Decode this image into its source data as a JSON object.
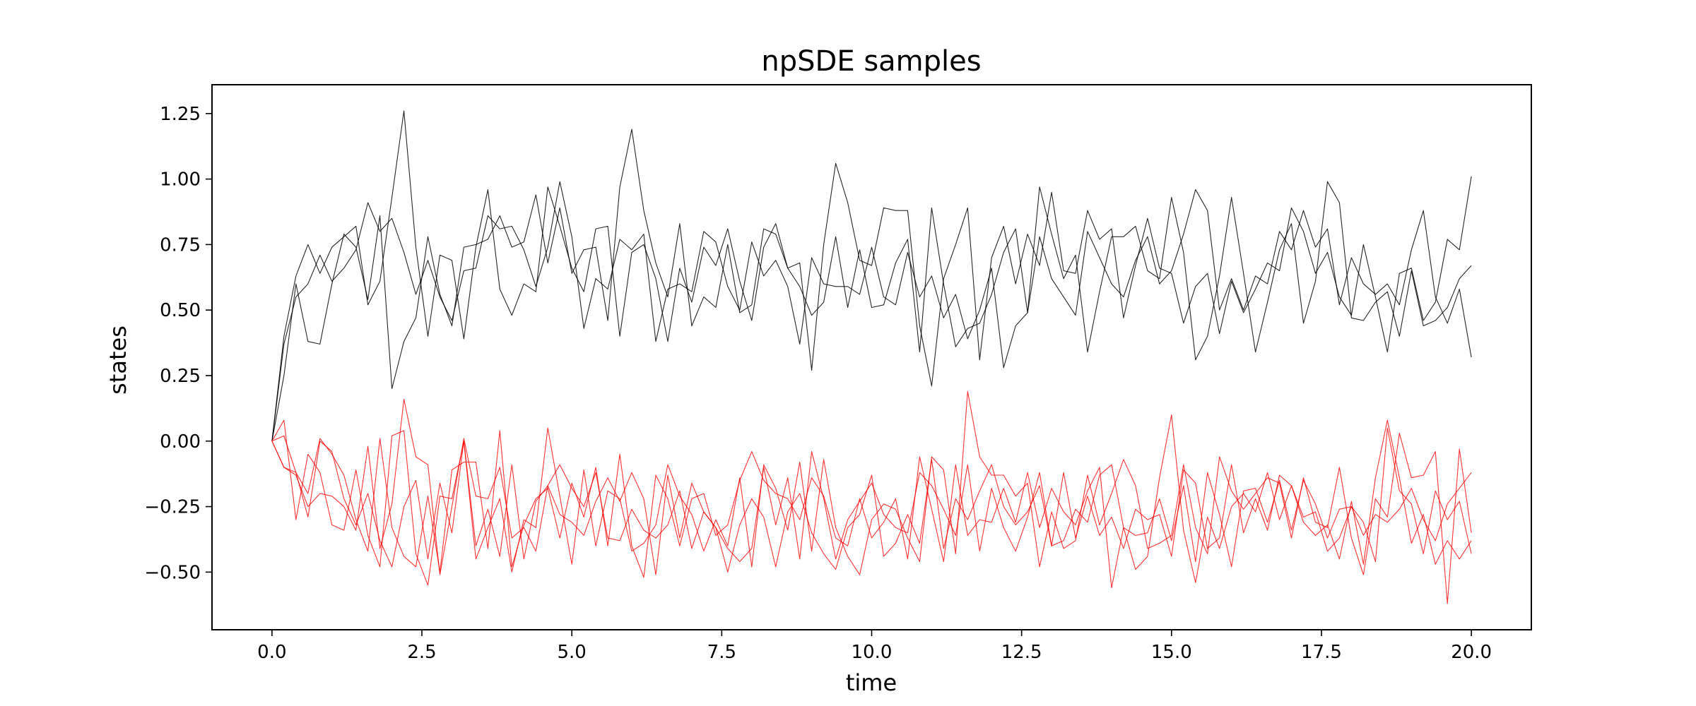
{
  "chart_data": {
    "type": "line",
    "title": "npSDE samples",
    "xlabel": "time",
    "ylabel": "states",
    "xlim": [
      -1.0,
      21.0
    ],
    "ylim": [
      -0.72,
      1.36
    ],
    "xticks": [
      0.0,
      2.5,
      5.0,
      7.5,
      10.0,
      12.5,
      15.0,
      17.5,
      20.0
    ],
    "xtick_labels": [
      "0.0",
      "2.5",
      "5.0",
      "7.5",
      "10.0",
      "12.5",
      "15.0",
      "17.5",
      "20.0"
    ],
    "yticks": [
      -0.5,
      -0.25,
      0.0,
      0.25,
      0.5,
      0.75,
      1.0,
      1.25
    ],
    "ytick_labels": [
      "−0.50",
      "−0.25",
      "0.00",
      "0.25",
      "0.50",
      "0.75",
      "1.00",
      "1.25"
    ],
    "grid": false,
    "legend": "none",
    "x": [
      0.0,
      0.2,
      0.4,
      0.6,
      0.8,
      1.0,
      1.2,
      1.4,
      1.6,
      1.8,
      2.0,
      2.2,
      2.4,
      2.6,
      2.8,
      3.0,
      3.2,
      3.4,
      3.6,
      3.8,
      4.0,
      4.2,
      4.4,
      4.6,
      4.8,
      5.0,
      5.2,
      5.4,
      5.6,
      5.8,
      6.0,
      6.2,
      6.4,
      6.6,
      6.8,
      7.0,
      7.2,
      7.4,
      7.6,
      7.8,
      8.0,
      8.2,
      8.4,
      8.6,
      8.8,
      9.0,
      9.2,
      9.4,
      9.6,
      9.8,
      10.0,
      10.2,
      10.4,
      10.6,
      10.8,
      11.0,
      11.2,
      11.4,
      11.6,
      11.8,
      12.0,
      12.2,
      12.4,
      12.6,
      12.8,
      13.0,
      13.2,
      13.4,
      13.6,
      13.8,
      14.0,
      14.2,
      14.4,
      14.6,
      14.8,
      15.0,
      15.2,
      15.4,
      15.6,
      15.8,
      16.0,
      16.2,
      16.4,
      16.6,
      16.8,
      17.0,
      17.2,
      17.4,
      17.6,
      17.8,
      18.0,
      18.2,
      18.4,
      18.6,
      18.8,
      19.0,
      19.2,
      19.4,
      19.6,
      19.8,
      20.0
    ],
    "series": [
      {
        "color": "#000000",
        "values": [
          0.0,
          0.4,
          0.63,
          0.75,
          0.64,
          0.74,
          0.78,
          0.82,
          0.52,
          0.61,
          0.93,
          1.26,
          0.74,
          0.4,
          0.71,
          0.69,
          0.39,
          0.74,
          0.96,
          0.58,
          0.48,
          0.6,
          0.57,
          0.97,
          0.82,
          0.66,
          0.57,
          0.81,
          0.82,
          0.4,
          0.72,
          0.75,
          0.62,
          0.38,
          0.66,
          0.53,
          0.74,
          0.67,
          0.81,
          0.61,
          0.46,
          0.74,
          0.83,
          0.66,
          0.68,
          0.27,
          0.75,
          1.06,
          0.91,
          0.69,
          0.67,
          0.89,
          0.88,
          0.88,
          0.44,
          0.21,
          0.62,
          0.75,
          0.89,
          0.31,
          0.7,
          0.82,
          0.6,
          0.79,
          0.67,
          0.95,
          0.65,
          0.64,
          0.88,
          0.77,
          0.81,
          0.47,
          0.67,
          0.85,
          0.66,
          0.64,
          0.45,
          0.59,
          0.64,
          0.41,
          0.61,
          0.49,
          0.58,
          0.68,
          0.65,
          0.89,
          0.8,
          0.64,
          0.72,
          0.55,
          0.48,
          0.75,
          0.55,
          0.34,
          0.64,
          0.66,
          0.46,
          0.53,
          0.77,
          0.73,
          1.01
        ]
      },
      {
        "color": "#000000",
        "values": [
          0.0,
          0.25,
          0.6,
          0.38,
          0.37,
          0.6,
          0.79,
          0.74,
          0.54,
          0.86,
          0.2,
          0.38,
          0.47,
          0.78,
          0.56,
          0.44,
          0.74,
          0.75,
          0.77,
          0.86,
          0.74,
          0.76,
          0.94,
          0.68,
          0.89,
          0.64,
          0.73,
          0.74,
          0.46,
          0.97,
          1.19,
          0.88,
          0.68,
          0.55,
          0.83,
          0.44,
          0.55,
          0.51,
          0.75,
          0.49,
          0.52,
          0.81,
          0.79,
          0.66,
          0.59,
          0.48,
          0.53,
          0.78,
          0.51,
          0.73,
          0.51,
          0.52,
          0.68,
          0.77,
          0.34,
          0.89,
          0.6,
          0.36,
          0.43,
          0.45,
          0.56,
          0.72,
          0.81,
          0.49,
          0.97,
          0.79,
          0.62,
          0.71,
          0.34,
          0.57,
          0.78,
          0.78,
          0.82,
          0.65,
          0.62,
          0.93,
          0.72,
          0.31,
          0.4,
          0.63,
          0.93,
          0.64,
          0.34,
          0.53,
          0.73,
          0.83,
          0.45,
          0.61,
          0.99,
          0.91,
          0.47,
          0.46,
          0.53,
          0.57,
          0.4,
          0.65,
          0.44,
          0.46,
          0.51,
          0.62,
          0.67
        ]
      },
      {
        "color": "#000000",
        "values": [
          0.0,
          0.37,
          0.55,
          0.6,
          0.71,
          0.61,
          0.66,
          0.73,
          0.91,
          0.8,
          0.85,
          0.72,
          0.56,
          0.69,
          0.55,
          0.46,
          0.65,
          0.66,
          0.86,
          0.81,
          0.82,
          0.73,
          0.59,
          0.74,
          0.99,
          0.78,
          0.43,
          0.62,
          0.58,
          0.77,
          0.73,
          0.79,
          0.38,
          0.58,
          0.6,
          0.57,
          0.8,
          0.76,
          0.59,
          0.5,
          0.76,
          0.63,
          0.69,
          0.59,
          0.37,
          0.7,
          0.6,
          0.59,
          0.59,
          0.56,
          0.74,
          0.55,
          0.52,
          0.72,
          0.55,
          0.63,
          0.47,
          0.56,
          0.39,
          0.5,
          0.66,
          0.28,
          0.44,
          0.49,
          0.78,
          0.62,
          0.55,
          0.48,
          0.8,
          0.7,
          0.6,
          0.55,
          0.69,
          0.78,
          0.6,
          0.65,
          0.79,
          0.96,
          0.88,
          0.5,
          0.62,
          0.5,
          0.63,
          0.6,
          0.8,
          0.73,
          0.88,
          0.74,
          0.81,
          0.52,
          0.7,
          0.6,
          0.56,
          0.6,
          0.52,
          0.73,
          0.88,
          0.55,
          0.45,
          0.58,
          0.32
        ]
      },
      {
        "color": "#ff0000",
        "values": [
          0.0,
          0.08,
          -0.3,
          -0.05,
          -0.12,
          -0.32,
          -0.34,
          -0.11,
          -0.36,
          -0.48,
          0.02,
          0.04,
          -0.43,
          -0.55,
          -0.21,
          -0.22,
          0.0,
          -0.45,
          -0.33,
          -0.22,
          -0.5,
          -0.3,
          -0.33,
          0.05,
          -0.21,
          -0.47,
          -0.11,
          -0.4,
          -0.19,
          -0.22,
          -0.42,
          -0.39,
          -0.32,
          -0.09,
          -0.21,
          -0.28,
          -0.42,
          -0.3,
          -0.4,
          -0.14,
          -0.48,
          -0.09,
          -0.18,
          -0.34,
          -0.08,
          -0.42,
          -0.07,
          -0.33,
          -0.44,
          -0.51,
          -0.3,
          -0.24,
          -0.26,
          -0.37,
          -0.46,
          -0.06,
          -0.11,
          -0.43,
          0.19,
          -0.06,
          -0.13,
          -0.13,
          -0.21,
          -0.16,
          -0.48,
          -0.27,
          -0.41,
          -0.38,
          -0.13,
          -0.32,
          -0.2,
          -0.07,
          -0.17,
          -0.41,
          -0.39,
          -0.36,
          -0.09,
          -0.33,
          -0.43,
          -0.06,
          -0.19,
          -0.26,
          -0.2,
          -0.14,
          -0.16,
          -0.37,
          -0.14,
          -0.31,
          -0.33,
          -0.1,
          -0.37,
          -0.51,
          -0.22,
          -0.29,
          0.03,
          -0.14,
          -0.13,
          -0.04,
          -0.62,
          -0.03,
          -0.35
        ]
      },
      {
        "color": "#ff0000",
        "values": [
          0.0,
          0.02,
          -0.12,
          -0.2,
          0.01,
          -0.05,
          -0.13,
          -0.3,
          -0.42,
          0.01,
          -0.33,
          -0.44,
          -0.48,
          -0.21,
          -0.5,
          -0.11,
          -0.08,
          -0.08,
          -0.41,
          0.04,
          -0.48,
          -0.32,
          -0.22,
          -0.18,
          -0.37,
          -0.16,
          -0.29,
          -0.1,
          -0.4,
          -0.05,
          -0.4,
          -0.52,
          -0.13,
          -0.22,
          -0.4,
          -0.22,
          -0.2,
          -0.36,
          -0.32,
          -0.15,
          -0.04,
          -0.15,
          -0.2,
          -0.22,
          -0.3,
          -0.14,
          -0.21,
          -0.37,
          -0.4,
          -0.22,
          -0.37,
          -0.31,
          -0.22,
          -0.45,
          -0.06,
          -0.26,
          -0.46,
          -0.09,
          -0.36,
          -0.3,
          -0.31,
          -0.18,
          -0.31,
          -0.12,
          -0.33,
          -0.18,
          -0.27,
          -0.32,
          -0.19,
          -0.1,
          -0.56,
          -0.33,
          -0.36,
          -0.35,
          -0.22,
          -0.38,
          -0.17,
          -0.46,
          -0.12,
          -0.28,
          -0.48,
          -0.19,
          -0.18,
          -0.31,
          -0.15,
          -0.34,
          -0.15,
          -0.24,
          -0.37,
          -0.26,
          -0.25,
          -0.31,
          -0.46,
          0.05,
          -0.19,
          -0.24,
          -0.43,
          -0.19,
          -0.3,
          -0.23,
          -0.43
        ]
      },
      {
        "color": "#ff0000",
        "values": [
          0.0,
          -0.1,
          -0.13,
          -0.25,
          -0.2,
          -0.21,
          -0.25,
          -0.34,
          -0.02,
          -0.41,
          -0.24,
          0.16,
          -0.06,
          -0.09,
          -0.51,
          -0.25,
          0.01,
          -0.21,
          -0.22,
          -0.1,
          -0.37,
          -0.33,
          -0.42,
          -0.17,
          -0.28,
          -0.31,
          -0.36,
          -0.23,
          -0.14,
          -0.23,
          -0.12,
          -0.22,
          -0.51,
          -0.13,
          -0.37,
          -0.16,
          -0.27,
          -0.33,
          -0.41,
          -0.46,
          -0.41,
          -0.1,
          -0.32,
          -0.14,
          -0.45,
          -0.04,
          -0.22,
          -0.45,
          -0.3,
          -0.23,
          -0.16,
          -0.28,
          -0.33,
          -0.35,
          -0.12,
          -0.17,
          -0.26,
          -0.36,
          -0.09,
          -0.42,
          -0.18,
          -0.33,
          -0.42,
          -0.29,
          -0.12,
          -0.4,
          -0.38,
          -0.26,
          -0.31,
          -0.13,
          -0.09,
          -0.33,
          -0.49,
          -0.44,
          -0.14,
          0.1,
          -0.34,
          -0.54,
          -0.29,
          -0.41,
          -0.25,
          -0.2,
          -0.27,
          -0.12,
          -0.3,
          -0.17,
          -0.31,
          -0.36,
          -0.32,
          -0.45,
          -0.23,
          -0.47,
          -0.14,
          0.08,
          -0.14,
          -0.39,
          -0.28,
          -0.47,
          -0.38,
          -0.45,
          -0.38
        ]
      },
      {
        "color": "#ff0000",
        "values": [
          0.0,
          -0.1,
          -0.12,
          -0.29,
          0.0,
          -0.04,
          -0.22,
          -0.32,
          -0.2,
          -0.38,
          -0.48,
          -0.25,
          -0.15,
          -0.45,
          -0.16,
          -0.35,
          0.0,
          -0.4,
          -0.26,
          -0.44,
          -0.09,
          -0.45,
          -0.23,
          -0.17,
          -0.09,
          -0.18,
          -0.25,
          -0.12,
          -0.37,
          -0.38,
          -0.26,
          -0.34,
          -0.37,
          -0.32,
          -0.19,
          -0.41,
          -0.27,
          -0.33,
          -0.5,
          -0.32,
          -0.22,
          -0.29,
          -0.48,
          -0.27,
          -0.2,
          -0.35,
          -0.43,
          -0.49,
          -0.33,
          -0.28,
          -0.13,
          -0.44,
          -0.39,
          -0.28,
          -0.39,
          -0.07,
          -0.41,
          -0.22,
          -0.3,
          -0.19,
          -0.09,
          -0.25,
          -0.32,
          -0.27,
          -0.17,
          -0.4,
          -0.12,
          -0.37,
          -0.21,
          -0.36,
          -0.29,
          -0.41,
          -0.26,
          -0.3,
          -0.28,
          -0.44,
          -0.11,
          -0.16,
          -0.41,
          -0.37,
          -0.09,
          -0.35,
          -0.22,
          -0.34,
          -0.13,
          -0.17,
          -0.29,
          -0.27,
          -0.42,
          -0.37,
          -0.25,
          -0.36,
          -0.28,
          -0.31,
          -0.26,
          -0.18,
          -0.3,
          -0.38,
          -0.24,
          -0.18,
          -0.12
        ]
      }
    ]
  }
}
